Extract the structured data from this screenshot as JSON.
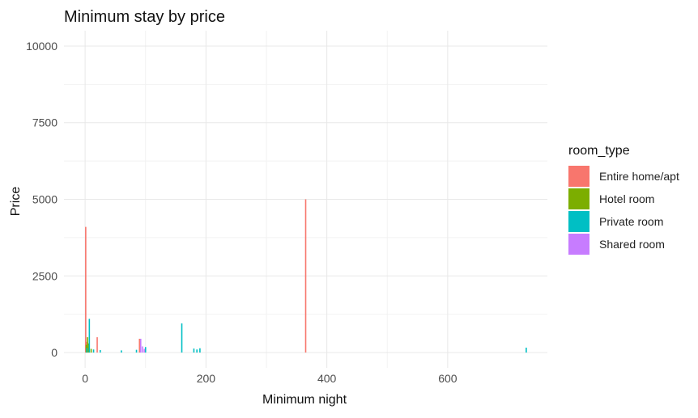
{
  "chart_data": {
    "type": "bar",
    "title": "Minimum stay by price",
    "xlabel": "Minimum night",
    "ylabel": "Price",
    "xlim": [
      -35,
      765
    ],
    "ylim": [
      -500,
      10500
    ],
    "x_ticks": [
      0,
      200,
      400,
      600
    ],
    "y_ticks": [
      0,
      2500,
      5000,
      7500,
      10000
    ],
    "grid": true,
    "legend": {
      "title": "room_type",
      "placement": "right",
      "items": [
        {
          "label": "Entire home/apt",
          "color": "#F8766D"
        },
        {
          "label": "Hotel room",
          "color": "#7CAE00"
        },
        {
          "label": "Private room",
          "color": "#00BFC4"
        },
        {
          "label": "Shared room",
          "color": "#C77CFF"
        }
      ]
    },
    "series": [
      {
        "name": "Entire home/apt",
        "color": "#F8766D",
        "points": [
          {
            "x": 1,
            "y": 4100
          },
          {
            "x": 2,
            "y": 350
          },
          {
            "x": 3,
            "y": 300
          },
          {
            "x": 5,
            "y": 200
          },
          {
            "x": 20,
            "y": 500
          },
          {
            "x": 90,
            "y": 450
          },
          {
            "x": 365,
            "y": 5000
          }
        ]
      },
      {
        "name": "Hotel room",
        "color": "#7CAE00",
        "points": [
          {
            "x": 2,
            "y": 250
          },
          {
            "x": 4,
            "y": 500
          },
          {
            "x": 6,
            "y": 300
          },
          {
            "x": 10,
            "y": 120
          }
        ]
      },
      {
        "name": "Private room",
        "color": "#00BFC4",
        "points": [
          {
            "x": 3,
            "y": 150
          },
          {
            "x": 7,
            "y": 1100
          },
          {
            "x": 14,
            "y": 100
          },
          {
            "x": 25,
            "y": 80
          },
          {
            "x": 60,
            "y": 70
          },
          {
            "x": 85,
            "y": 90
          },
          {
            "x": 100,
            "y": 180
          },
          {
            "x": 160,
            "y": 950
          },
          {
            "x": 180,
            "y": 130
          },
          {
            "x": 185,
            "y": 100
          },
          {
            "x": 190,
            "y": 140
          },
          {
            "x": 730,
            "y": 160
          }
        ]
      },
      {
        "name": "Shared room",
        "color": "#C77CFF",
        "points": [
          {
            "x": 92,
            "y": 450
          },
          {
            "x": 95,
            "y": 200
          },
          {
            "x": 98,
            "y": 120
          }
        ]
      }
    ]
  }
}
